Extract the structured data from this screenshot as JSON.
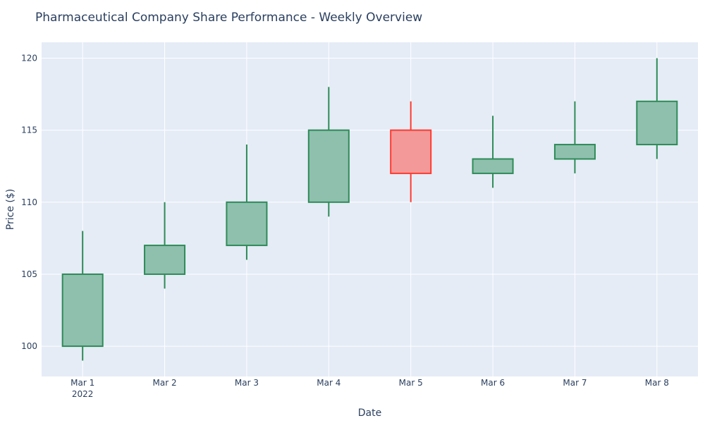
{
  "chart_data": {
    "type": "candlestick",
    "title": "Pharmaceutical Company Share Performance - Weekly Overview",
    "xlabel": "Date",
    "ylabel": "Price ($)",
    "x": [
      "Mar 1",
      "Mar 2",
      "Mar 3",
      "Mar 4",
      "Mar 5",
      "Mar 6",
      "Mar 7",
      "Mar 8"
    ],
    "year_label": "2022",
    "open": [
      100,
      105,
      107,
      110,
      115,
      112,
      113,
      114
    ],
    "high": [
      108,
      110,
      114,
      118,
      117,
      116,
      117,
      120
    ],
    "low": [
      99,
      104,
      106,
      109,
      110,
      111,
      112,
      113
    ],
    "close": [
      105,
      107,
      110,
      115,
      112,
      113,
      114,
      117
    ],
    "ylim": [
      97.9,
      121.1
    ],
    "y_ticks": [
      100,
      105,
      110,
      115,
      120
    ],
    "grid": true,
    "colors": {
      "increasing_line": "#2e8b57",
      "increasing_fill": "#8fc0ae",
      "decreasing_line": "#ff3b30",
      "decreasing_fill": "#f3999a",
      "plot_background": "#e5ecf6",
      "grid": "#ffffff",
      "text": "#2a3f5f"
    }
  }
}
